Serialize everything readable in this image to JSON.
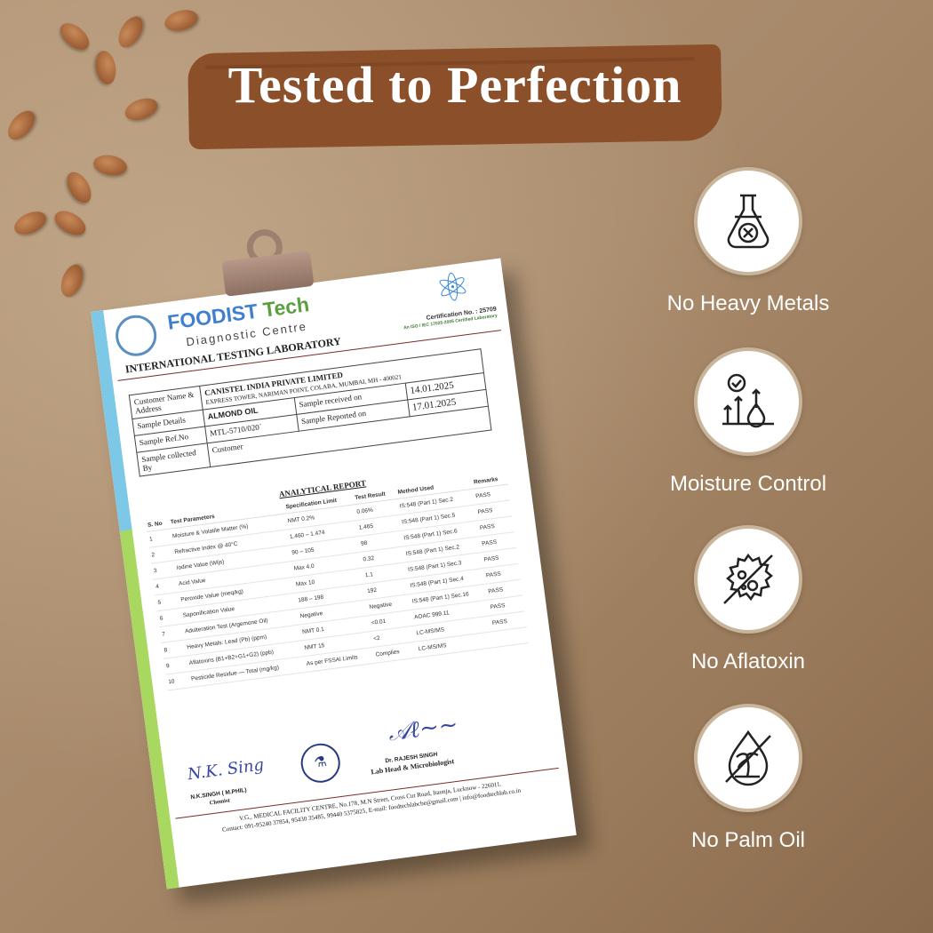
{
  "header": {
    "title": "Tested to Perfection"
  },
  "report": {
    "brand_main": "FOODIST",
    "brand_accent": "Tech",
    "brand_sub": "Diagnostic Centre",
    "lab_title": "INTERNATIONAL TESTING LABORATORY",
    "certification": "Certification No. : 25709",
    "accreditation": "An ISO / IEC 17025-2005 Certified Laboratory",
    "info": {
      "customer_label": "Customer Name & Address",
      "customer_name": "CANISTEL INDIA PRIVATE LIMITED",
      "customer_address": "EXPRESS TOWER, NARIMAN POINT, COLABA, MUMBAI, MH - 400021",
      "sample_details_label": "Sample Details",
      "sample_details": "ALMOND OIL",
      "received_label": "Sample received on",
      "received": "14.01.2025",
      "ref_label": "Sample Ref.No",
      "ref": "MTL-5710/020´",
      "reported_label": "Sample Reported on",
      "reported": "17.01.2025",
      "collected_label": "Sample collected By",
      "collected": "Customer"
    },
    "analytical_title": "ANALYTICAL REPORT",
    "columns": [
      "S. No",
      "Test Parameters",
      "Specification Limit",
      "Test Result",
      "Method Used",
      "Remarks"
    ],
    "rows": [
      [
        "1",
        "Moisture & Volatile Matter (%)",
        "NMT 0.2%",
        "0.06%",
        "IS:548 (Part 1) Sec.2",
        "PASS"
      ],
      [
        "2",
        "Refractive Index @ 40°C",
        "1.460 – 1.474",
        "1.465",
        "IS:548 (Part 1) Sec.5",
        "PASS"
      ],
      [
        "3",
        "Iodine Value (Wijs)",
        "90 – 105",
        "98",
        "IS:548 (Part 1) Sec.6",
        "PASS"
      ],
      [
        "4",
        "Acid Value",
        "Max 4.0",
        "0.32",
        "IS:548 (Part 1) Sec.2",
        "PASS"
      ],
      [
        "5",
        "Peroxide Value (meq/kg)",
        "Max 10",
        "1.1",
        "IS:548 (Part 1) Sec.3",
        "PASS"
      ],
      [
        "6",
        "Saponification Value",
        "188 – 198",
        "192",
        "IS:548 (Part 1) Sec.4",
        "PASS"
      ],
      [
        "7",
        "Adulteration Test (Argemone Oil)",
        "Negative",
        "Negative",
        "IS:548 (Part 1) Sec.16",
        "PASS"
      ],
      [
        "8",
        "Heavy Metals: Lead (Pb) (ppm)",
        "NMT 0.1",
        "<0.01",
        "AOAC 999.11",
        "PASS"
      ],
      [
        "9",
        "Aflatoxins (B1+B2+G1+G2) (ppb)",
        "NMT 15",
        "<2",
        "LC-MS/MS",
        "PASS"
      ],
      [
        "10",
        "Pesticide Residue — Total (mg/kg)",
        "As per FSSAI Limits",
        "Complies",
        "LC-MS/MS",
        ""
      ]
    ],
    "signatory1_name": "N.K.SINGH ( M.PHIL)",
    "signatory1_role": "Chemist",
    "signatory1_signature": "N.K. Sing",
    "signatory2_name": "Dr. RAJESH SINGH",
    "signatory2_role": "Lab Head & Microbiologist",
    "footer_address": "V.G., MEDICAL FACILITY CENTRE, No.178, M.N Street, Cross Cut Road, Itaunja, Lucknow - 226011.",
    "footer_contact": "Contact: 091-95240 37854, 95430 35485, 99440 5375825, E-mail: foodtechlabcbe@gmail.com | info@foodtechlab.co.in"
  },
  "features": [
    {
      "label": "No Heavy Metals",
      "icon": "flask-x-icon"
    },
    {
      "label": "Moisture Control",
      "icon": "moisture-gauge-icon"
    },
    {
      "label": "No Aflatoxin",
      "icon": "mold-crossed-icon"
    },
    {
      "label": "No Palm Oil",
      "icon": "palm-crossed-icon"
    }
  ],
  "colors": {
    "banner": "#8b4f2a",
    "background": "#a88a6b",
    "brand_blue": "#3f7fd0",
    "brand_green": "#5aa040"
  }
}
